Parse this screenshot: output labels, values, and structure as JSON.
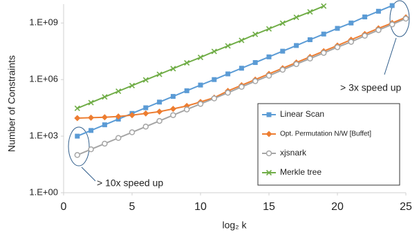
{
  "chart_data": {
    "type": "line",
    "y_scale": "log",
    "grid": false,
    "legend": "lower right",
    "y_label": "Number of Constraints",
    "x_label": "log₂ k",
    "xlim": [
      0,
      25
    ],
    "xticks": [
      0,
      5,
      10,
      15,
      20,
      25
    ],
    "ylim": [
      1,
      10000000000
    ],
    "yticks": [
      {
        "value": 1,
        "label": "1.E+00"
      },
      {
        "value": 1000,
        "label": "1.E+03"
      },
      {
        "value": 1000000,
        "label": "1.E+06"
      },
      {
        "value": 1000000000,
        "label": "1.E+09"
      }
    ],
    "annotations": [
      "> 3x speed up",
      "> 10x speed up"
    ],
    "series": [
      {
        "name": "Linear Scan",
        "color": "#5b9bd5",
        "marker": "square",
        "x": [
          1,
          2,
          3,
          4,
          5,
          6,
          7,
          8,
          9,
          10,
          11,
          12,
          13,
          14,
          15,
          16,
          17,
          18,
          19,
          20,
          21,
          22,
          23,
          24
        ],
        "values": [
          1000,
          2000,
          4000,
          8000,
          16000,
          32000,
          64000,
          128000,
          256000,
          512000,
          1000000,
          2000000,
          4000000,
          8000000,
          16000000,
          32000000,
          64000000,
          130000000,
          260000000,
          520000000,
          1000000000,
          2100000000,
          4200000000,
          8400000000
        ]
      },
      {
        "name": "Opt. Permutation N/W [Buffet]",
        "color": "#ed7d31",
        "marker": "diamond",
        "x": [
          1,
          2,
          3,
          4,
          5,
          6,
          7,
          8,
          9,
          10,
          11,
          12,
          13,
          14,
          15,
          16,
          17,
          18,
          19,
          20,
          21,
          22,
          23,
          24,
          25
        ],
        "values": [
          9000,
          9500,
          10000,
          11000,
          13000,
          16000,
          20000,
          28000,
          40000,
          65000,
          110000,
          250000,
          500000,
          1000000,
          2000000,
          4000000,
          8000000,
          16000000,
          32000000,
          64000000,
          130000000,
          260000000,
          520000000,
          1000000000,
          2000000000
        ]
      },
      {
        "name": "xjsnark",
        "color": "#a5a5a5",
        "marker": "circle",
        "x": [
          1,
          2,
          3,
          4,
          5,
          6,
          7,
          8,
          9,
          10,
          11,
          12,
          13,
          14,
          15,
          16,
          17,
          18,
          19,
          20,
          21,
          22,
          23,
          24,
          25
        ],
        "values": [
          100,
          200,
          400,
          800,
          1600,
          3200,
          6400,
          13000,
          26000,
          51000,
          100000,
          200000,
          410000,
          820000,
          1600000,
          3300000,
          6600000,
          13000000,
          26000000,
          52000000,
          100000000,
          210000000,
          420000000,
          840000000,
          1700000000
        ]
      },
      {
        "name": "Merkle tree",
        "color": "#70ad47",
        "marker": "x",
        "x": [
          1,
          2,
          3,
          4,
          5,
          6,
          7,
          8,
          9,
          10,
          11,
          12,
          13,
          14,
          15,
          16,
          17,
          18,
          19
        ],
        "values": [
          30000,
          60000,
          120000,
          240000,
          480000,
          960000,
          1900000,
          3800000,
          7700000,
          15000000,
          31000000,
          61000000,
          120000000,
          250000000,
          490000000,
          980000000,
          2000000000,
          3900000000,
          7900000000
        ]
      }
    ]
  }
}
